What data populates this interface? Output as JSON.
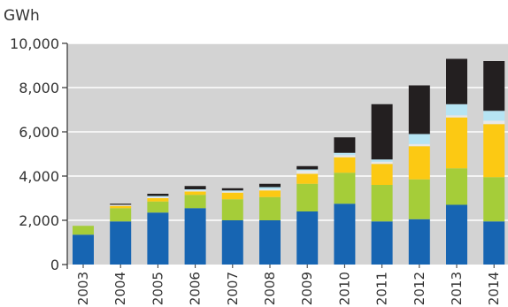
{
  "chart_data": {
    "type": "bar",
    "stacked": true,
    "title": "",
    "xlabel": "",
    "ylabel": "GWh",
    "ylim": [
      0,
      10000
    ],
    "yticks": [
      0,
      2000,
      4000,
      6000,
      8000,
      10000
    ],
    "ytick_labels": [
      "0",
      "2,000",
      "4,000",
      "6,000",
      "8,000",
      "10,000"
    ],
    "grid": true,
    "legend": "none",
    "categories": [
      "2003",
      "2004",
      "2005",
      "2006",
      "2007",
      "2008",
      "2009",
      "2010",
      "2011",
      "2012",
      "2013",
      "2014"
    ],
    "series": [
      {
        "color": "#1765b2",
        "values": [
          1350,
          1950,
          2350,
          2550,
          2000,
          2000,
          2400,
          2750,
          1950,
          2050,
          2700,
          1950
        ]
      },
      {
        "color": "#a5cd39",
        "values": [
          400,
          600,
          500,
          600,
          950,
          1050,
          1250,
          1400,
          1650,
          1800,
          1650,
          2000
        ]
      },
      {
        "color": "#fcc913",
        "values": [
          0,
          100,
          150,
          150,
          300,
          300,
          450,
          700,
          950,
          1500,
          2300,
          2400
        ]
      },
      {
        "color": "#e8e8e8",
        "values": [
          0,
          50,
          50,
          50,
          50,
          50,
          150,
          100,
          100,
          100,
          100,
          150
        ]
      },
      {
        "color": "#b6e4f3",
        "values": [
          0,
          0,
          50,
          50,
          50,
          100,
          50,
          100,
          100,
          450,
          500,
          450
        ]
      },
      {
        "color": "#231f20",
        "values": [
          0,
          50,
          100,
          150,
          100,
          150,
          150,
          700,
          2500,
          2200,
          2050,
          2250
        ]
      }
    ]
  }
}
